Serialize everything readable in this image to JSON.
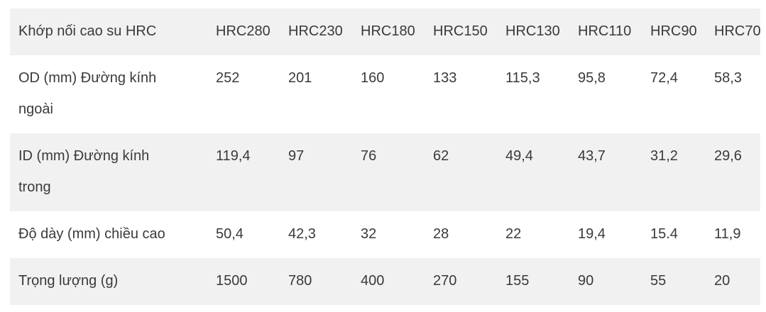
{
  "table": {
    "header": [
      "Khớp nối cao su HRC",
      "HRC280",
      "HRC230",
      "HRC180",
      "HRC150",
      "HRC130",
      "HRC110",
      "HRC90",
      "HRC70"
    ],
    "rows": [
      [
        "OD (mm) Đường kính ngoài",
        "252",
        "201",
        "160",
        "133",
        "115,3",
        "95,8",
        "72,4",
        "58,3"
      ],
      [
        "ID (mm) Đường kính trong",
        "119,4",
        "97",
        "76",
        "62",
        "49,4",
        "43,7",
        "31,2",
        "29,6"
      ],
      [
        "Độ dày (mm) chiều cao",
        "50,4",
        "42,3",
        "32",
        "28",
        "22",
        "19,4",
        "15.4",
        "11,9"
      ],
      [
        "Trọng lượng (g)",
        "1500",
        "780",
        "400",
        "270",
        "155",
        "90",
        "55",
        "20"
      ]
    ]
  }
}
